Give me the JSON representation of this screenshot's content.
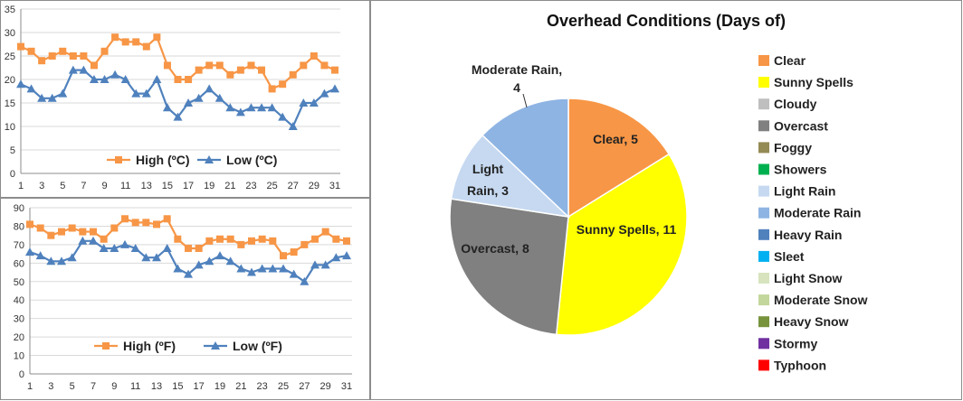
{
  "chart_data": [
    {
      "type": "line",
      "x": [
        1,
        2,
        3,
        4,
        5,
        6,
        7,
        8,
        9,
        10,
        11,
        12,
        13,
        14,
        15,
        16,
        17,
        18,
        19,
        20,
        21,
        22,
        23,
        24,
        25,
        26,
        27,
        28,
        29,
        30,
        31
      ],
      "x_tick_labels": [
        "1",
        "3",
        "5",
        "7",
        "9",
        "11",
        "13",
        "15",
        "17",
        "19",
        "21",
        "23",
        "25",
        "27",
        "29",
        "31"
      ],
      "ylim": [
        0,
        35
      ],
      "y_ticks": [
        0,
        5,
        10,
        15,
        20,
        25,
        30,
        35
      ],
      "grid": true,
      "legend": "bottom",
      "series": [
        {
          "name": "High (ºC)",
          "color": "#f79646",
          "marker": "square",
          "values": [
            27,
            26,
            24,
            25,
            26,
            25,
            25,
            23,
            26,
            29,
            28,
            28,
            27,
            29,
            23,
            20,
            20,
            22,
            23,
            23,
            21,
            22,
            23,
            22,
            18,
            19,
            21,
            23,
            25,
            23,
            22
          ]
        },
        {
          "name": "Low (ºC)",
          "color": "#4f81bd",
          "marker": "triangle",
          "values": [
            19,
            18,
            16,
            16,
            17,
            22,
            22,
            20,
            20,
            21,
            20,
            17,
            17,
            20,
            14,
            12,
            15,
            16,
            18,
            16,
            14,
            13,
            14,
            14,
            14,
            12,
            10,
            15,
            15,
            17,
            18
          ]
        }
      ]
    },
    {
      "type": "line",
      "x": [
        1,
        2,
        3,
        4,
        5,
        6,
        7,
        8,
        9,
        10,
        11,
        12,
        13,
        14,
        15,
        16,
        17,
        18,
        19,
        20,
        21,
        22,
        23,
        24,
        25,
        26,
        27,
        28,
        29,
        30,
        31
      ],
      "x_tick_labels": [
        "1",
        "3",
        "5",
        "7",
        "9",
        "11",
        "13",
        "15",
        "17",
        "19",
        "21",
        "23",
        "25",
        "27",
        "29",
        "31"
      ],
      "ylim": [
        0,
        90
      ],
      "y_ticks": [
        0,
        10,
        20,
        30,
        40,
        50,
        60,
        70,
        80,
        90
      ],
      "grid": true,
      "legend": "bottom",
      "series": [
        {
          "name": "High (ºF)",
          "color": "#f79646",
          "marker": "square",
          "values": [
            81,
            79,
            75,
            77,
            79,
            77,
            77,
            73,
            79,
            84,
            82,
            82,
            81,
            84,
            73,
            68,
            68,
            72,
            73,
            73,
            70,
            72,
            73,
            72,
            64,
            66,
            70,
            73,
            77,
            73,
            72
          ]
        },
        {
          "name": "Low (ºF)",
          "color": "#4f81bd",
          "marker": "triangle",
          "values": [
            66,
            64,
            61,
            61,
            63,
            72,
            72,
            68,
            68,
            70,
            68,
            63,
            63,
            68,
            57,
            54,
            59,
            61,
            64,
            61,
            57,
            55,
            57,
            57,
            57,
            54,
            50,
            59,
            59,
            63,
            64
          ]
        }
      ]
    },
    {
      "type": "pie",
      "title": "Overhead Conditions (Days of)",
      "slices": [
        {
          "label": "Clear",
          "value": 5,
          "color": "#f79646",
          "slice_label": [
            "Clear, 5"
          ]
        },
        {
          "label": "Sunny Spells",
          "value": 11,
          "color": "#ffff00",
          "slice_label": [
            "Sunny Spells, 11"
          ]
        },
        {
          "label": "Cloudy",
          "value": 0,
          "color": "#bfbfbf",
          "slice_label": []
        },
        {
          "label": "Overcast",
          "value": 8,
          "color": "#808080",
          "slice_label": [
            "Overcast, 8"
          ]
        },
        {
          "label": "Foggy",
          "value": 0,
          "color": "#948a54",
          "slice_label": []
        },
        {
          "label": "Showers",
          "value": 0,
          "color": "#00b050",
          "slice_label": []
        },
        {
          "label": "Light Rain",
          "value": 3,
          "color": "#c6d9f1",
          "slice_label": [
            "Light",
            "Rain, 3"
          ]
        },
        {
          "label": "Moderate Rain",
          "value": 4,
          "color": "#8eb4e3",
          "slice_label": [
            "Moderate Rain,",
            "4"
          ]
        },
        {
          "label": "Heavy Rain",
          "value": 0,
          "color": "#4f81bd",
          "slice_label": []
        },
        {
          "label": "Sleet",
          "value": 0,
          "color": "#00b0f0",
          "slice_label": []
        },
        {
          "label": "Light Snow",
          "value": 0,
          "color": "#d7e4bd",
          "slice_label": []
        },
        {
          "label": "Moderate Snow",
          "value": 0,
          "color": "#c3d69b",
          "slice_label": []
        },
        {
          "label": "Heavy Snow",
          "value": 0,
          "color": "#77933c",
          "slice_label": []
        },
        {
          "label": "Stormy",
          "value": 0,
          "color": "#7030a0",
          "slice_label": []
        },
        {
          "label": "Typhoon",
          "value": 0,
          "color": "#ff0000",
          "slice_label": []
        }
      ],
      "legend": "right"
    }
  ]
}
